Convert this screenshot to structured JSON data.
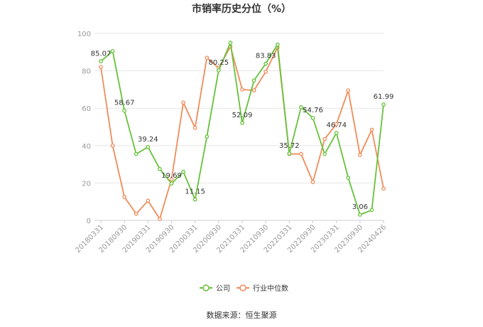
{
  "chart_data": {
    "type": "line",
    "title": "市销率历史分位（%）",
    "ylim": [
      0,
      100
    ],
    "yticks": [
      0,
      20,
      40,
      60,
      80,
      100
    ],
    "grid": true,
    "legend_position": "bottom",
    "x": [
      "20180331",
      "20180630",
      "20180930",
      "20181231",
      "20190331",
      "20190630",
      "20190930",
      "20191231",
      "20200331",
      "20200630",
      "20200930",
      "20201231",
      "20210331",
      "20210630",
      "20210930",
      "20211231",
      "20220331",
      "20220630",
      "20220930",
      "20221231",
      "20230331",
      "20230630",
      "20230930",
      "20231231",
      "20240426"
    ],
    "xtick_labels": [
      "20180331",
      "20180930",
      "20190331",
      "20190930",
      "20200331",
      "20200930",
      "20210331",
      "20210930",
      "20220331",
      "20220930",
      "20230331",
      "20230930",
      "20240426"
    ],
    "series": [
      {
        "name": "公司",
        "color": "#66c23a",
        "values": [
          85.07,
          90.5,
          58.67,
          35.5,
          39.24,
          27.5,
          19.69,
          26.0,
          11.15,
          44.8,
          80.25,
          95.0,
          52.09,
          74.8,
          83.83,
          94.0,
          35.72,
          60.5,
          54.76,
          35.5,
          46.74,
          22.8,
          3.06,
          5.5,
          61.99
        ]
      },
      {
        "name": "行业中位数",
        "color": "#f08c5a",
        "values": [
          82.0,
          40.0,
          12.5,
          3.5,
          10.5,
          0.8,
          22.0,
          63.0,
          49.5,
          87.0,
          81.5,
          93.0,
          70.0,
          69.5,
          79.5,
          92.5,
          35.5,
          35.5,
          20.5,
          43.5,
          51.5,
          69.5,
          35.0,
          48.5,
          17.0
        ]
      }
    ],
    "data_labels": [
      {
        "series": 0,
        "index": 0,
        "text": "85.07"
      },
      {
        "series": 0,
        "index": 2,
        "text": "58.67"
      },
      {
        "series": 0,
        "index": 4,
        "text": "39.24"
      },
      {
        "series": 0,
        "index": 6,
        "text": "19.69"
      },
      {
        "series": 0,
        "index": 8,
        "text": "11.15"
      },
      {
        "series": 0,
        "index": 10,
        "text": "80.25"
      },
      {
        "series": 0,
        "index": 12,
        "text": "52.09"
      },
      {
        "series": 0,
        "index": 14,
        "text": "83.83"
      },
      {
        "series": 0,
        "index": 16,
        "text": "35.72"
      },
      {
        "series": 0,
        "index": 18,
        "text": "54.76"
      },
      {
        "series": 0,
        "index": 20,
        "text": "46.74"
      },
      {
        "series": 0,
        "index": 22,
        "text": "3.06"
      },
      {
        "series": 0,
        "index": 24,
        "text": "61.99"
      }
    ],
    "source": "数据来源：恒生聚源"
  }
}
